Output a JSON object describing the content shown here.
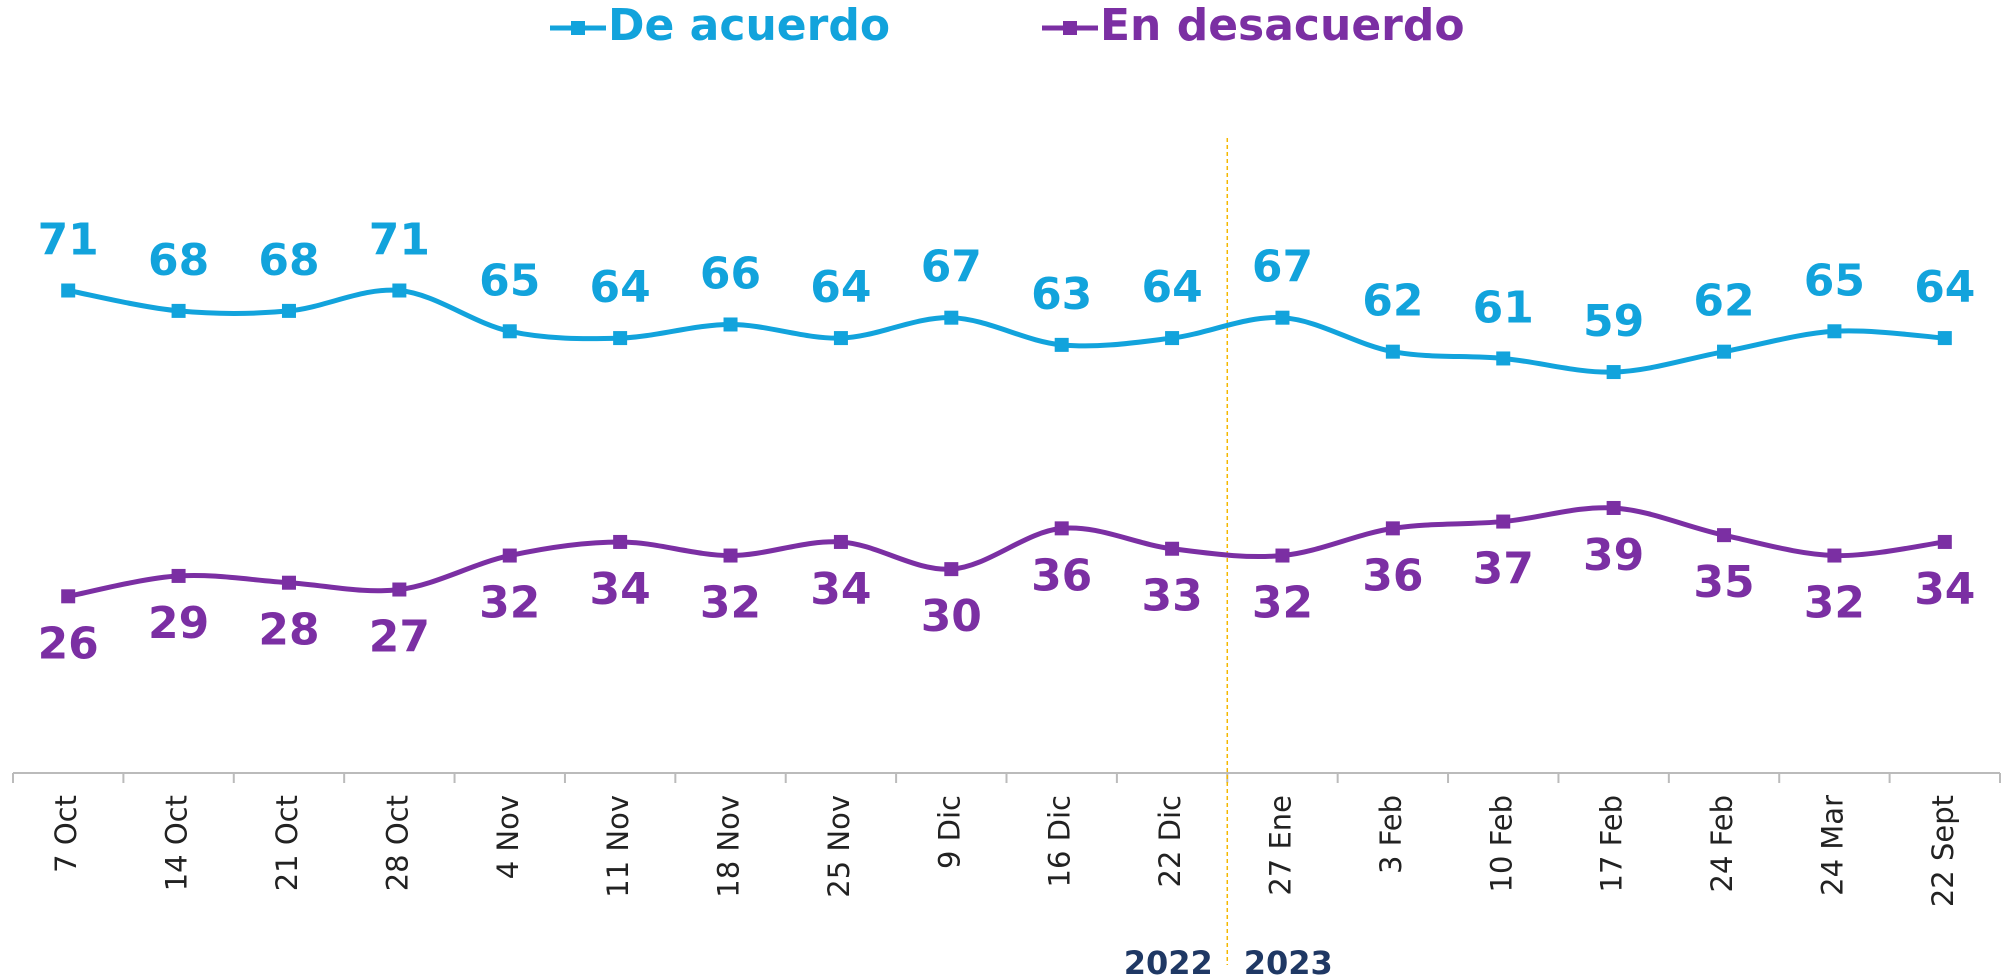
{
  "chart_data": {
    "type": "line",
    "categories": [
      "7 Oct",
      "14 Oct",
      "21 Oct",
      "28 Oct",
      "4 Nov",
      "11 Nov",
      "18 Nov",
      "25 Nov",
      "9 Dic",
      "16 Dic",
      "22 Dic",
      "27 Ene",
      "3 Feb",
      "10 Feb",
      "17 Feb",
      "24 Feb",
      "24 Mar",
      "22 Sept"
    ],
    "series": [
      {
        "name": "De acuerdo",
        "color": "#12a3dc",
        "values": [
          71,
          68,
          68,
          71,
          65,
          64,
          66,
          64,
          67,
          63,
          64,
          67,
          62,
          61,
          59,
          62,
          65,
          64
        ]
      },
      {
        "name": "En desacuerdo",
        "color": "#7b2fa3",
        "values": [
          26,
          29,
          28,
          27,
          32,
          34,
          32,
          34,
          30,
          36,
          33,
          32,
          36,
          37,
          39,
          35,
          32,
          34
        ]
      }
    ],
    "ylim": [
      0,
      93
    ],
    "year_labels": [
      "2022",
      "2023"
    ],
    "year_divider_after": 10
  }
}
